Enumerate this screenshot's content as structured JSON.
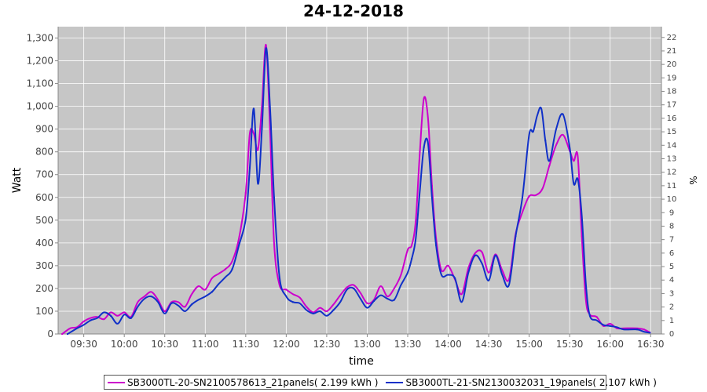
{
  "chart_data": {
    "type": "line",
    "title": "24-12-2018",
    "xlabel": "time",
    "ylabel": "Watt",
    "y2label": "%",
    "x_ticks": [
      "09:30",
      "10:00",
      "10:30",
      "11:00",
      "11:30",
      "12:00",
      "12:30",
      "13:00",
      "13:30",
      "14:00",
      "14:30",
      "15:00",
      "15:30",
      "16:00",
      "16:30"
    ],
    "x_range": [
      "09:11",
      "16:38"
    ],
    "ylim": [
      0,
      1350
    ],
    "y_ticks": [
      "0",
      "100",
      "200",
      "300",
      "400",
      "500",
      "600",
      "700",
      "800",
      "900",
      "1,000",
      "1,100",
      "1,200",
      "1,300"
    ],
    "y2lim": [
      0,
      22.8
    ],
    "y2_ticks": [
      "0",
      "1",
      "2",
      "3",
      "4",
      "5",
      "6",
      "7",
      "8",
      "9",
      "10",
      "11",
      "12",
      "13",
      "14",
      "15",
      "16",
      "17",
      "18",
      "19",
      "20",
      "21",
      "22"
    ],
    "grid": true,
    "legend_position": "bottom",
    "series": [
      {
        "name": "SB3000TL-20-SN2100578613_21panels( 2.199 kWh )",
        "color": "#cc00cc",
        "points": [
          [
            "09:14",
            0
          ],
          [
            "09:20",
            25
          ],
          [
            "09:25",
            30
          ],
          [
            "09:30",
            55
          ],
          [
            "09:35",
            70
          ],
          [
            "09:40",
            75
          ],
          [
            "09:45",
            65
          ],
          [
            "09:50",
            95
          ],
          [
            "09:55",
            80
          ],
          [
            "10:00",
            95
          ],
          [
            "10:05",
            75
          ],
          [
            "10:10",
            140
          ],
          [
            "10:15",
            165
          ],
          [
            "10:20",
            185
          ],
          [
            "10:25",
            150
          ],
          [
            "10:30",
            100
          ],
          [
            "10:35",
            140
          ],
          [
            "10:40",
            140
          ],
          [
            "10:45",
            120
          ],
          [
            "10:50",
            175
          ],
          [
            "10:55",
            210
          ],
          [
            "11:00",
            195
          ],
          [
            "11:05",
            245
          ],
          [
            "11:10",
            265
          ],
          [
            "11:15",
            285
          ],
          [
            "11:20",
            320
          ],
          [
            "11:25",
            420
          ],
          [
            "11:30",
            620
          ],
          [
            "11:33",
            880
          ],
          [
            "11:36",
            880
          ],
          [
            "11:39",
            810
          ],
          [
            "11:42",
            1000
          ],
          [
            "11:45",
            1270
          ],
          [
            "11:48",
            900
          ],
          [
            "11:51",
            400
          ],
          [
            "11:55",
            215
          ],
          [
            "12:00",
            195
          ],
          [
            "12:05",
            175
          ],
          [
            "12:10",
            160
          ],
          [
            "12:15",
            120
          ],
          [
            "12:20",
            95
          ],
          [
            "12:25",
            115
          ],
          [
            "12:30",
            100
          ],
          [
            "12:35",
            130
          ],
          [
            "12:40",
            170
          ],
          [
            "12:45",
            205
          ],
          [
            "12:50",
            215
          ],
          [
            "12:55",
            180
          ],
          [
            "13:00",
            135
          ],
          [
            "13:05",
            150
          ],
          [
            "13:10",
            210
          ],
          [
            "13:15",
            165
          ],
          [
            "13:20",
            200
          ],
          [
            "13:25",
            260
          ],
          [
            "13:30",
            370
          ],
          [
            "13:33",
            390
          ],
          [
            "13:36",
            500
          ],
          [
            "13:39",
            800
          ],
          [
            "13:42",
            1035
          ],
          [
            "13:45",
            950
          ],
          [
            "13:48",
            650
          ],
          [
            "13:51",
            420
          ],
          [
            "13:55",
            280
          ],
          [
            "14:00",
            300
          ],
          [
            "14:05",
            240
          ],
          [
            "14:10",
            175
          ],
          [
            "14:15",
            290
          ],
          [
            "14:20",
            355
          ],
          [
            "14:25",
            360
          ],
          [
            "14:30",
            270
          ],
          [
            "14:35",
            350
          ],
          [
            "14:40",
            280
          ],
          [
            "14:45",
            240
          ],
          [
            "14:50",
            440
          ],
          [
            "14:55",
            535
          ],
          [
            "15:00",
            605
          ],
          [
            "15:05",
            610
          ],
          [
            "15:10",
            640
          ],
          [
            "15:15",
            740
          ],
          [
            "15:20",
            830
          ],
          [
            "15:25",
            875
          ],
          [
            "15:30",
            805
          ],
          [
            "15:33",
            760
          ],
          [
            "15:36",
            780
          ],
          [
            "15:39",
            430
          ],
          [
            "15:42",
            150
          ],
          [
            "15:45",
            85
          ],
          [
            "15:50",
            75
          ],
          [
            "15:55",
            35
          ],
          [
            "16:00",
            45
          ],
          [
            "16:05",
            25
          ],
          [
            "16:10",
            25
          ],
          [
            "16:20",
            25
          ],
          [
            "16:25",
            20
          ],
          [
            "16:30",
            5
          ]
        ]
      },
      {
        "name": "SB3000TL-21-SN2130032031_19panels( 2.107 kWh )",
        "color": "#1030c8",
        "points": [
          [
            "09:18",
            0
          ],
          [
            "09:25",
            25
          ],
          [
            "09:30",
            40
          ],
          [
            "09:35",
            60
          ],
          [
            "09:40",
            70
          ],
          [
            "09:45",
            95
          ],
          [
            "09:50",
            80
          ],
          [
            "09:55",
            45
          ],
          [
            "10:00",
            85
          ],
          [
            "10:05",
            70
          ],
          [
            "10:10",
            120
          ],
          [
            "10:15",
            155
          ],
          [
            "10:20",
            165
          ],
          [
            "10:25",
            140
          ],
          [
            "10:30",
            90
          ],
          [
            "10:35",
            135
          ],
          [
            "10:40",
            125
          ],
          [
            "10:45",
            100
          ],
          [
            "10:50",
            130
          ],
          [
            "10:55",
            150
          ],
          [
            "11:00",
            165
          ],
          [
            "11:05",
            185
          ],
          [
            "11:10",
            220
          ],
          [
            "11:15",
            250
          ],
          [
            "11:20",
            285
          ],
          [
            "11:25",
            390
          ],
          [
            "11:30",
            505
          ],
          [
            "11:33",
            730
          ],
          [
            "11:36",
            990
          ],
          [
            "11:39",
            660
          ],
          [
            "11:42",
            900
          ],
          [
            "11:45",
            1255
          ],
          [
            "11:48",
            1000
          ],
          [
            "11:51",
            600
          ],
          [
            "11:55",
            250
          ],
          [
            "12:00",
            165
          ],
          [
            "12:05",
            140
          ],
          [
            "12:10",
            135
          ],
          [
            "12:15",
            105
          ],
          [
            "12:20",
            90
          ],
          [
            "12:25",
            100
          ],
          [
            "12:30",
            80
          ],
          [
            "12:35",
            105
          ],
          [
            "12:40",
            140
          ],
          [
            "12:45",
            195
          ],
          [
            "12:50",
            200
          ],
          [
            "12:55",
            155
          ],
          [
            "13:00",
            115
          ],
          [
            "13:05",
            145
          ],
          [
            "13:10",
            170
          ],
          [
            "13:15",
            155
          ],
          [
            "13:20",
            150
          ],
          [
            "13:25",
            215
          ],
          [
            "13:30",
            270
          ],
          [
            "13:33",
            330
          ],
          [
            "13:36",
            420
          ],
          [
            "13:39",
            630
          ],
          [
            "13:42",
            820
          ],
          [
            "13:45",
            840
          ],
          [
            "13:48",
            600
          ],
          [
            "13:51",
            390
          ],
          [
            "13:55",
            260
          ],
          [
            "14:00",
            260
          ],
          [
            "14:05",
            245
          ],
          [
            "14:10",
            140
          ],
          [
            "14:15",
            270
          ],
          [
            "14:20",
            345
          ],
          [
            "14:25",
            310
          ],
          [
            "14:30",
            235
          ],
          [
            "14:35",
            345
          ],
          [
            "14:40",
            260
          ],
          [
            "14:45",
            215
          ],
          [
            "14:50",
            430
          ],
          [
            "14:55",
            600
          ],
          [
            "15:00",
            875
          ],
          [
            "15:03",
            890
          ],
          [
            "15:06",
            960
          ],
          [
            "15:09",
            990
          ],
          [
            "15:12",
            850
          ],
          [
            "15:15",
            760
          ],
          [
            "15:20",
            900
          ],
          [
            "15:25",
            965
          ],
          [
            "15:30",
            820
          ],
          [
            "15:33",
            660
          ],
          [
            "15:36",
            680
          ],
          [
            "15:39",
            520
          ],
          [
            "15:42",
            220
          ],
          [
            "15:45",
            80
          ],
          [
            "15:50",
            60
          ],
          [
            "15:55",
            40
          ],
          [
            "16:00",
            35
          ],
          [
            "16:05",
            30
          ],
          [
            "16:10",
            20
          ],
          [
            "16:20",
            20
          ],
          [
            "16:25",
            10
          ],
          [
            "16:30",
            5
          ]
        ]
      }
    ]
  }
}
